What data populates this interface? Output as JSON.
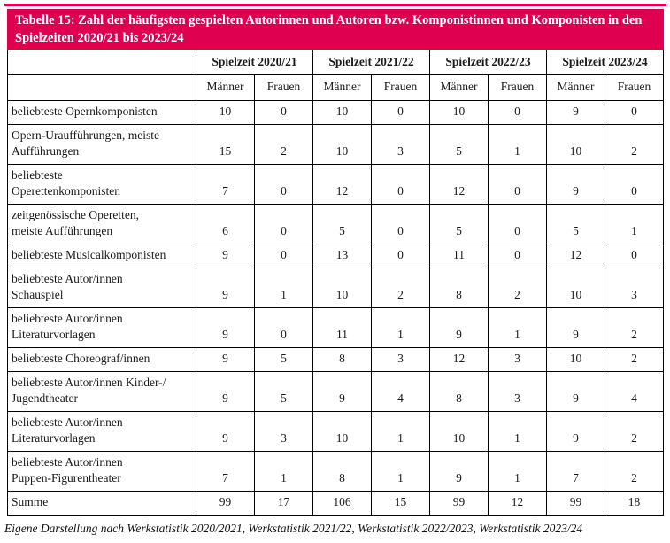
{
  "colors": {
    "accent": "#E00050",
    "border": "#000000",
    "title_text": "#FFFFFF"
  },
  "title": "Tabelle 15: Zahl der häufigsten gespielten Autorinnen und Autoren bzw. Komponistinnen und Komponisten in den Spielzeiten 2020/21 bis 2023/24",
  "table": {
    "season_headers": [
      "Spielzeit 2020/21",
      "Spielzeit 2021/22",
      "Spielzeit 2022/23",
      "Spielzeit 2023/24"
    ],
    "subheaders": [
      "Männer",
      "Frauen"
    ],
    "rows": [
      {
        "label": "beliebteste Opernkomponisten",
        "values": [
          "10",
          "0",
          "10",
          "0",
          "10",
          "0",
          "9",
          "0"
        ]
      },
      {
        "label": "Opern-Uraufführungen, meiste\nAufführungen",
        "values": [
          "15",
          "2",
          "10",
          "3",
          "5",
          "1",
          "10",
          "2"
        ]
      },
      {
        "label": "beliebteste\nOperettenkomponisten",
        "values": [
          "7",
          "0",
          "12",
          "0",
          "12",
          "0",
          "9",
          "0"
        ]
      },
      {
        "label": "zeitgenössische Operetten,\nmeiste Aufführungen",
        "values": [
          "6",
          "0",
          "5",
          "0",
          "5",
          "0",
          "5",
          "1"
        ]
      },
      {
        "label": "beliebteste Musicalkomponisten",
        "values": [
          "9",
          "0",
          "13",
          "0",
          "11",
          "0",
          "12",
          "0"
        ]
      },
      {
        "label": "beliebteste Autor/innen\nSchauspiel",
        "values": [
          "9",
          "1",
          "10",
          "2",
          "8",
          "2",
          "10",
          "3"
        ]
      },
      {
        "label": "beliebteste Autor/innen\nLiteraturvorlagen",
        "values": [
          "9",
          "0",
          "11",
          "1",
          "9",
          "1",
          "9",
          "2"
        ]
      },
      {
        "label": "beliebteste Choreograf/innen",
        "values": [
          "9",
          "5",
          "8",
          "3",
          "12",
          "3",
          "10",
          "2"
        ]
      },
      {
        "label": "beliebteste Autor/innen Kinder-/\nJugendtheater",
        "values": [
          "9",
          "5",
          "9",
          "4",
          "8",
          "3",
          "9",
          "4"
        ]
      },
      {
        "label": "beliebteste Autor/innen\nLiteraturvorlagen",
        "values": [
          "9",
          "3",
          "10",
          "1",
          "10",
          "1",
          "9",
          "2"
        ]
      },
      {
        "label": "beliebteste Autor/innen\nPuppen-Figurentheater",
        "values": [
          "7",
          "1",
          "8",
          "1",
          "9",
          "1",
          "7",
          "2"
        ]
      },
      {
        "label": "Summe",
        "values": [
          "99",
          "17",
          "106",
          "15",
          "99",
          "12",
          "99",
          "18"
        ]
      }
    ]
  },
  "footer": "Eigene Darstellung nach Werkstatistik 2020/2021, Werkstatistik 2021/22, Werkstatistik 2022/2023, Werkstatistik 2023/24"
}
